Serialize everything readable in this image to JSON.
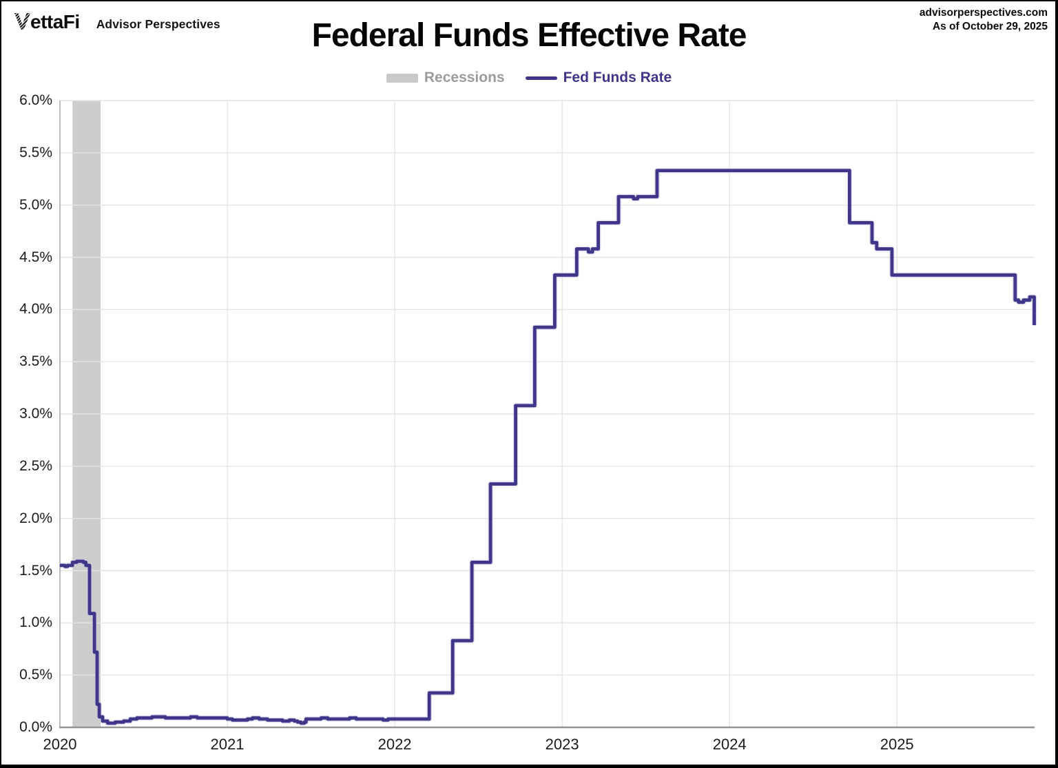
{
  "header": {
    "logo_v": "V",
    "logo_rest": "ettaFi",
    "logo_subtext": "Advisor Perspectives",
    "source_site": "advisorperspectives.com",
    "source_asof": "As of October 29, 2025",
    "title": "Federal Funds Effective Rate"
  },
  "legend": {
    "items": [
      {
        "label": "Recessions",
        "swatch": "band",
        "color": "#c9c9c9",
        "label_color": "#9c9c9c"
      },
      {
        "label": "Fed Funds Rate",
        "swatch": "line",
        "color": "#3f3689",
        "label_color": "#3f3689"
      }
    ]
  },
  "chart_data": {
    "type": "line",
    "title": "Federal Funds Effective Rate",
    "grid": true,
    "legend_position": "top-center",
    "x_axis": {
      "range": [
        2020.0,
        2025.822
      ],
      "ticks": [
        {
          "value": 2020,
          "label": "2020"
        },
        {
          "value": 2021,
          "label": "2021"
        },
        {
          "value": 2022,
          "label": "2022"
        },
        {
          "value": 2023,
          "label": "2023"
        },
        {
          "value": 2024,
          "label": "2024"
        },
        {
          "value": 2025,
          "label": "2025"
        }
      ]
    },
    "y_axis": {
      "unit": "%",
      "range": [
        0,
        6
      ],
      "ticks": [
        {
          "value": 0.0,
          "label": "0.0%"
        },
        {
          "value": 0.5,
          "label": "0.5%"
        },
        {
          "value": 1.0,
          "label": "1.0%"
        },
        {
          "value": 1.5,
          "label": "1.5%"
        },
        {
          "value": 2.0,
          "label": "2.0%"
        },
        {
          "value": 2.5,
          "label": "2.5%"
        },
        {
          "value": 3.0,
          "label": "3.0%"
        },
        {
          "value": 3.5,
          "label": "3.5%"
        },
        {
          "value": 4.0,
          "label": "4.0%"
        },
        {
          "value": 4.5,
          "label": "4.5%"
        },
        {
          "value": 5.0,
          "label": "5.0%"
        },
        {
          "value": 5.5,
          "label": "5.5%"
        },
        {
          "value": 6.0,
          "label": "6.0%"
        }
      ]
    },
    "recession_bands": [
      {
        "start": 2020.075,
        "end": 2020.243
      }
    ],
    "colors": {
      "line": "#3f3689",
      "line_halo": "#c7c3e0",
      "recession_band": "#cdcdcd",
      "gridline": "#e4e4e4",
      "axis_line": "#949494",
      "plot_border": "#ababab",
      "tick_text": "#1b1b1b"
    },
    "series": [
      {
        "name": "Fed Funds Rate",
        "step": true,
        "color": "#3f3689",
        "points": [
          [
            2020.0,
            1.55
          ],
          [
            2020.03,
            1.54
          ],
          [
            2020.045,
            1.55
          ],
          [
            2020.075,
            1.58
          ],
          [
            2020.1,
            1.59
          ],
          [
            2020.14,
            1.58
          ],
          [
            2020.155,
            1.55
          ],
          [
            2020.172,
            1.55
          ],
          [
            2020.177,
            1.09
          ],
          [
            2020.2,
            1.09
          ],
          [
            2020.206,
            0.72
          ],
          [
            2020.216,
            0.72
          ],
          [
            2020.222,
            0.22
          ],
          [
            2020.235,
            0.1
          ],
          [
            2020.255,
            0.06
          ],
          [
            2020.285,
            0.04
          ],
          [
            2020.33,
            0.05
          ],
          [
            2020.38,
            0.06
          ],
          [
            2020.42,
            0.08
          ],
          [
            2020.46,
            0.09
          ],
          [
            2020.52,
            0.09
          ],
          [
            2020.55,
            0.1
          ],
          [
            2020.6,
            0.1
          ],
          [
            2020.63,
            0.09
          ],
          [
            2020.72,
            0.09
          ],
          [
            2020.78,
            0.1
          ],
          [
            2020.82,
            0.09
          ],
          [
            2020.9,
            0.09
          ],
          [
            2020.97,
            0.09
          ],
          [
            2021.0,
            0.08
          ],
          [
            2021.03,
            0.07
          ],
          [
            2021.09,
            0.07
          ],
          [
            2021.12,
            0.08
          ],
          [
            2021.15,
            0.09
          ],
          [
            2021.19,
            0.08
          ],
          [
            2021.24,
            0.07
          ],
          [
            2021.3,
            0.07
          ],
          [
            2021.33,
            0.06
          ],
          [
            2021.37,
            0.07
          ],
          [
            2021.4,
            0.06
          ],
          [
            2021.42,
            0.05
          ],
          [
            2021.44,
            0.04
          ],
          [
            2021.46,
            0.05
          ],
          [
            2021.47,
            0.08
          ],
          [
            2021.53,
            0.08
          ],
          [
            2021.56,
            0.09
          ],
          [
            2021.6,
            0.08
          ],
          [
            2021.68,
            0.08
          ],
          [
            2021.73,
            0.09
          ],
          [
            2021.77,
            0.08
          ],
          [
            2021.88,
            0.08
          ],
          [
            2021.93,
            0.07
          ],
          [
            2021.96,
            0.08
          ],
          [
            2022.08,
            0.08
          ],
          [
            2022.2,
            0.08
          ],
          [
            2022.206,
            0.33
          ],
          [
            2022.34,
            0.33
          ],
          [
            2022.346,
            0.83
          ],
          [
            2022.455,
            0.83
          ],
          [
            2022.461,
            1.58
          ],
          [
            2022.565,
            1.58
          ],
          [
            2022.572,
            2.33
          ],
          [
            2022.715,
            2.33
          ],
          [
            2022.722,
            3.08
          ],
          [
            2022.83,
            3.08
          ],
          [
            2022.836,
            3.83
          ],
          [
            2022.95,
            3.83
          ],
          [
            2022.956,
            4.33
          ],
          [
            2023.08,
            4.33
          ],
          [
            2023.087,
            4.58
          ],
          [
            2023.15,
            4.58
          ],
          [
            2023.157,
            4.55
          ],
          [
            2023.175,
            4.55
          ],
          [
            2023.181,
            4.58
          ],
          [
            2023.21,
            4.58
          ],
          [
            2023.216,
            4.83
          ],
          [
            2023.33,
            4.83
          ],
          [
            2023.337,
            5.08
          ],
          [
            2023.42,
            5.08
          ],
          [
            2023.426,
            5.06
          ],
          [
            2023.445,
            5.06
          ],
          [
            2023.451,
            5.08
          ],
          [
            2023.56,
            5.08
          ],
          [
            2023.567,
            5.33
          ],
          [
            2024.71,
            5.33
          ],
          [
            2024.717,
            4.83
          ],
          [
            2024.845,
            4.83
          ],
          [
            2024.851,
            4.64
          ],
          [
            2024.873,
            4.64
          ],
          [
            2024.879,
            4.58
          ],
          [
            2024.964,
            4.58
          ],
          [
            2024.97,
            4.33
          ],
          [
            2025.7,
            4.33
          ],
          [
            2025.706,
            4.09
          ],
          [
            2025.726,
            4.07
          ],
          [
            2025.75,
            4.07
          ],
          [
            2025.756,
            4.09
          ],
          [
            2025.787,
            4.09
          ],
          [
            2025.793,
            4.12
          ],
          [
            2025.815,
            4.12
          ],
          [
            2025.82,
            3.85
          ]
        ]
      }
    ]
  }
}
